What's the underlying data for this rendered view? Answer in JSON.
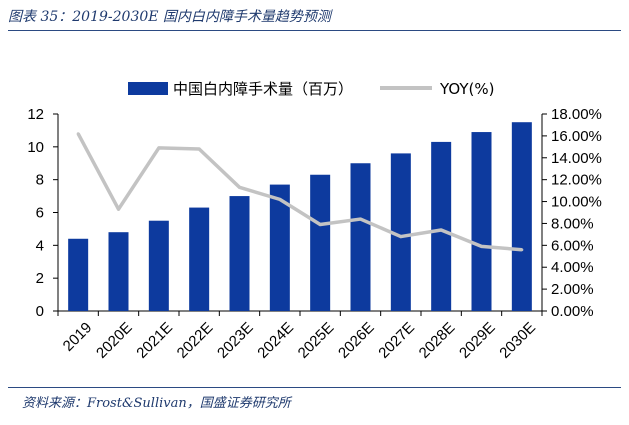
{
  "figure": {
    "title": "图表 35：2019-2030E 国内白内障手术量趋势预测",
    "source": "资料来源：Frost&Sullivan，国盛证券研究所"
  },
  "colors": {
    "bar": "#0d3a9e",
    "line": "#c3c3c3",
    "title": "#1f3a6e"
  },
  "chart_data": {
    "type": "bar",
    "categories": [
      "2019",
      "2020E",
      "2021E",
      "2022E",
      "2023E",
      "2024E",
      "2025E",
      "2026E",
      "2027E",
      "2028E",
      "2029E",
      "2030E"
    ],
    "series": [
      {
        "name": "中国白内障手术量（百万）",
        "type": "bar",
        "axis": "left",
        "values": [
          4.4,
          4.8,
          5.5,
          6.3,
          7.0,
          7.7,
          8.3,
          9.0,
          9.6,
          10.3,
          10.9,
          11.5
        ]
      },
      {
        "name": "YOY(%)",
        "type": "line",
        "axis": "right",
        "values": [
          16.2,
          9.3,
          14.9,
          14.8,
          11.3,
          10.2,
          7.9,
          8.4,
          6.8,
          7.4,
          5.9,
          5.6
        ]
      }
    ],
    "y_left": {
      "min": 0,
      "max": 12,
      "ticks": [
        "0",
        "2",
        "4",
        "6",
        "8",
        "10",
        "12"
      ]
    },
    "y_right": {
      "min": 0,
      "max": 18,
      "ticks": [
        "0.00%",
        "2.00%",
        "4.00%",
        "6.00%",
        "8.00%",
        "10.00%",
        "12.00%",
        "14.00%",
        "16.00%",
        "18.00%"
      ]
    },
    "legend_position": "top",
    "grid": false
  }
}
